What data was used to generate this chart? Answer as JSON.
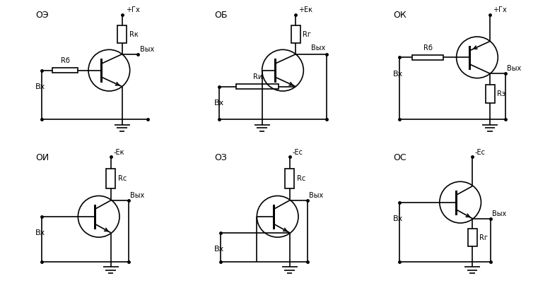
{
  "bg_color": "#ffffff",
  "line_color": "#000000",
  "lw": 1.2,
  "panels": {
    "OE": {
      "label": "ОЭ",
      "supply": "+Гх",
      "R_top": "Rк",
      "R_base": "Rб"
    },
    "OB": {
      "label": "ОБ",
      "supply": "+Eк",
      "R_top": "Rг",
      "R_in": "Rи"
    },
    "OK": {
      "label": "ОК",
      "supply": "+Гх",
      "R_base": "Rб",
      "R_bot": "Rэ"
    },
    "OI": {
      "label": "ОИ",
      "supply": "-Eк",
      "R_top": "Rс"
    },
    "OZ": {
      "label": "ОЗ",
      "supply": "-Eс",
      "R_top": "Rс"
    },
    "OS": {
      "label": "ОС",
      "supply": "-Eс",
      "R_bot": "Rг"
    }
  }
}
